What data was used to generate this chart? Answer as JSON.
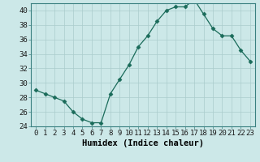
{
  "x": [
    0,
    1,
    2,
    3,
    4,
    5,
    6,
    7,
    8,
    9,
    10,
    11,
    12,
    13,
    14,
    15,
    16,
    17,
    18,
    19,
    20,
    21,
    22,
    23
  ],
  "y": [
    29,
    28.5,
    28,
    27.5,
    26,
    25,
    24.5,
    24.5,
    28.5,
    30.5,
    32.5,
    35,
    36.5,
    38.5,
    40,
    40.5,
    40.5,
    41.5,
    39.5,
    37.5,
    36.5,
    36.5,
    34.5,
    33
  ],
  "line_color": "#1a6b5a",
  "marker": "D",
  "marker_size": 2.5,
  "bg_color": "#cce8e8",
  "grid_color": "#aacccc",
  "xlabel": "Humidex (Indice chaleur)",
  "ylim": [
    24,
    41
  ],
  "yticks": [
    24,
    26,
    28,
    30,
    32,
    34,
    36,
    38,
    40
  ],
  "xticks": [
    0,
    1,
    2,
    3,
    4,
    5,
    6,
    7,
    8,
    9,
    10,
    11,
    12,
    13,
    14,
    15,
    16,
    17,
    18,
    19,
    20,
    21,
    22,
    23
  ],
  "tick_fontsize": 6.5,
  "xlabel_fontsize": 7.5
}
